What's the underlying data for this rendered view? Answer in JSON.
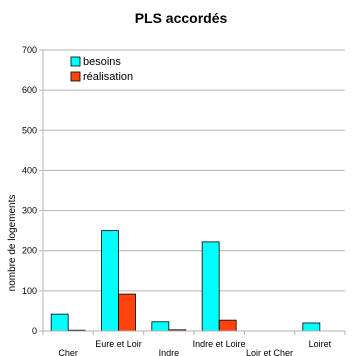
{
  "chart_data": {
    "type": "bar",
    "title": "PLS accordés",
    "xlabel": "",
    "ylabel": "nombre de logements",
    "categories": [
      "Cher",
      "Eure et Loir",
      "Indre",
      "Indre et Loire",
      "Loir et Cher",
      "Loiret"
    ],
    "series": [
      {
        "name": "besoins",
        "values": [
          42,
          250,
          23,
          222,
          0,
          20
        ],
        "color": "#00ffff"
      },
      {
        "name": "réalisation",
        "values": [
          2,
          92,
          3,
          27,
          0,
          0
        ],
        "color": "#ff420e"
      }
    ],
    "ylim": [
      0,
      700
    ],
    "yticks": [
      0,
      100,
      200,
      300,
      400,
      500,
      600,
      700
    ],
    "grid": true,
    "legend": "top-left"
  }
}
